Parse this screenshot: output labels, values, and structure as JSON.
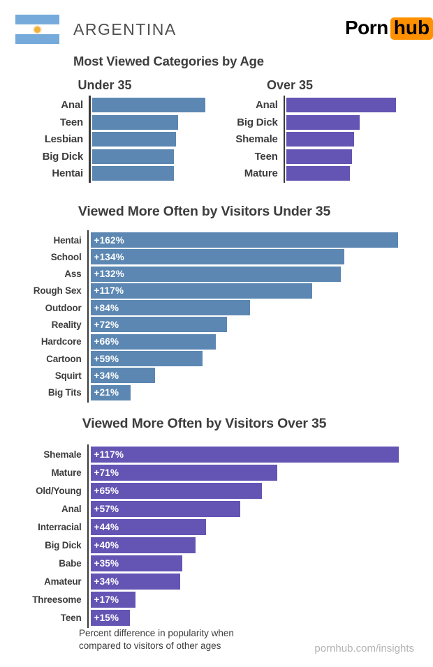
{
  "header": {
    "country": "ARGENTINA",
    "title": "Most Viewed Categories by Age",
    "logo_porn": "Porn",
    "logo_hub": "hub"
  },
  "colors": {
    "bar_blue": "#5b87b2",
    "bar_purple": "#6454b4",
    "axis": "#3a3a3a",
    "text_dark": "#3d3d3d",
    "text_gray": "#4f4f4f",
    "text_muted": "#b3b3b3",
    "logo_orange": "#ff9000",
    "flag_blue": "#75aadb",
    "flag_sun": "#f2b137"
  },
  "chart_data": [
    {
      "type": "bar",
      "orientation": "horizontal",
      "title": "Under 35",
      "categories": [
        "Anal",
        "Teen",
        "Lesbian",
        "Big Dick",
        "Hentai"
      ],
      "relative_lengths": [
        1.0,
        0.76,
        0.74,
        0.72,
        0.72
      ],
      "value_labels": null,
      "color": "#5b87b2",
      "legend": "none",
      "grid": false
    },
    {
      "type": "bar",
      "orientation": "horizontal",
      "title": "Over 35",
      "categories": [
        "Anal",
        "Big Dick",
        "Shemale",
        "Teen",
        "Mature"
      ],
      "relative_lengths": [
        1.0,
        0.67,
        0.62,
        0.6,
        0.58
      ],
      "value_labels": null,
      "color": "#6454b4",
      "legend": "none",
      "grid": false
    },
    {
      "type": "bar",
      "orientation": "horizontal",
      "title": "Viewed More Often by Visitors Under 35",
      "categories": [
        "Hentai",
        "School",
        "Ass",
        "Rough Sex",
        "Outdoor",
        "Reality",
        "Hardcore",
        "Cartoon",
        "Squirt",
        "Big Tits"
      ],
      "values": [
        162,
        134,
        132,
        117,
        84,
        72,
        66,
        59,
        34,
        21
      ],
      "value_labels": [
        "+162%",
        "+134%",
        "+132%",
        "+117%",
        "+84%",
        "+72%",
        "+66%",
        "+59%",
        "+34%",
        "+21%"
      ],
      "unit": "percent",
      "xlim": [
        0,
        162
      ],
      "color": "#5b87b2",
      "legend": "none",
      "grid": false
    },
    {
      "type": "bar",
      "orientation": "horizontal",
      "title": "Viewed More Often by Visitors Over 35",
      "categories": [
        "Shemale",
        "Mature",
        "Old/Young",
        "Anal",
        "Interracial",
        "Big Dick",
        "Babe",
        "Amateur",
        "Threesome",
        "Teen"
      ],
      "values": [
        117,
        71,
        65,
        57,
        44,
        40,
        35,
        34,
        17,
        15
      ],
      "value_labels": [
        "+117%",
        "+71%",
        "+65%",
        "+57%",
        "+44%",
        "+40%",
        "+35%",
        "+34%",
        "+17%",
        "+15%"
      ],
      "unit": "percent",
      "xlim": [
        0,
        117
      ],
      "color": "#6454b4",
      "legend": "none",
      "grid": false
    }
  ],
  "footer": {
    "note_line1": "Percent difference in popularity when",
    "note_line2": "compared to visitors of other ages",
    "site": "pornhub.com/insights"
  }
}
